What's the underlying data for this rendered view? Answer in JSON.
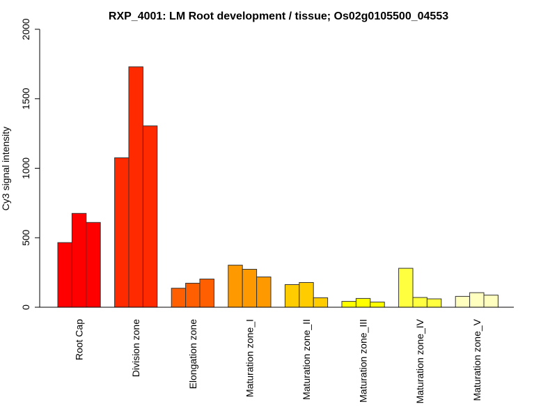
{
  "chart_data": {
    "type": "bar",
    "title": "RXP_4001: LM Root development / tissue; Os02g0105500_04553",
    "xlabel": "",
    "ylabel": "Cy3 signal intensity",
    "ylim": [
      0,
      2000
    ],
    "yticks": [
      0,
      500,
      1000,
      1500,
      2000
    ],
    "grid": false,
    "legend": "none",
    "bars_per_group": 3,
    "categories": [
      "Root Cap",
      "Division zone",
      "Elongation zone",
      "Maturation zone_I",
      "Maturation zone_II",
      "Maturation zone_III",
      "Maturation zone_IV",
      "Maturation zone_V"
    ],
    "colors": [
      "#FF0000",
      "#FF2A00",
      "#FF5F00",
      "#FF9900",
      "#FFCC00",
      "#FFFF00",
      "#FFFF40",
      "#FFFFBF"
    ],
    "values": [
      [
        465,
        675,
        610
      ],
      [
        1075,
        1730,
        1305
      ],
      [
        137,
        173,
        203
      ],
      [
        303,
        273,
        218
      ],
      [
        163,
        178,
        68
      ],
      [
        42,
        63,
        37
      ],
      [
        280,
        70,
        60
      ],
      [
        78,
        105,
        87
      ]
    ]
  }
}
